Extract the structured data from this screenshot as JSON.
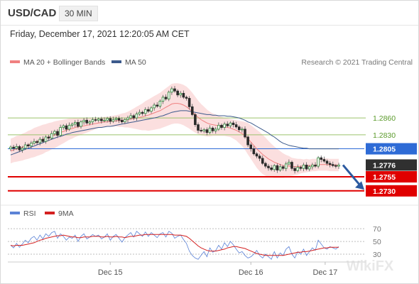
{
  "header": {
    "pair": "USD/CAD",
    "timeframe": "30 MIN",
    "date": "Friday, December 17, 2021 12:20:05 AM CET"
  },
  "chart_data": {
    "type": "candlestick",
    "title": "USD/CAD",
    "legend": {
      "ma20": {
        "label": "MA 20 + Bollinger Bands",
        "color": "#f08080"
      },
      "ma50": {
        "label": "MA 50",
        "color": "#3c5a8c"
      },
      "rsi": {
        "label": "RSI",
        "color": "#5b82d6"
      },
      "ma9": {
        "label": "9MA",
        "color": "#d42020"
      }
    },
    "source": "Research © 2021 Trading Central",
    "watermark": "WikiFX",
    "x_ticks": [
      "Dec 15",
      "Dec 16",
      "Dec 17"
    ],
    "ylim": [
      1.2712,
      1.2945
    ],
    "levels": [
      {
        "value": 1.286,
        "label": "1.2860",
        "kind": "resistance",
        "color": "#9cc46c"
      },
      {
        "value": 1.283,
        "label": "1.2830",
        "kind": "resistance",
        "color": "#9cc46c"
      },
      {
        "value": 1.2805,
        "label": "1.2805",
        "kind": "ma",
        "color": "#2e6bd6"
      },
      {
        "value": 1.2776,
        "label": "1.2776",
        "kind": "last",
        "color": "#303030"
      },
      {
        "value": 1.2755,
        "label": "1.2755",
        "kind": "support",
        "color": "#e00000"
      },
      {
        "value": 1.273,
        "label": "1.2730",
        "kind": "support",
        "color": "#e00000"
      }
    ],
    "close": [
      1.2808,
      1.2806,
      1.2809,
      1.2803,
      1.2806,
      1.2812,
      1.281,
      1.2815,
      1.2818,
      1.2816,
      1.2822,
      1.2818,
      1.2826,
      1.2824,
      1.2832,
      1.2836,
      1.2829,
      1.2843,
      1.2846,
      1.284,
      1.2847,
      1.2849,
      1.2852,
      1.2845,
      1.2853,
      1.2856,
      1.2851,
      1.2853,
      1.2857,
      1.2856,
      1.2858,
      1.2855,
      1.2856,
      1.2859,
      1.2854,
      1.2857,
      1.2859,
      1.2856,
      1.2853,
      1.2857,
      1.286,
      1.2864,
      1.286,
      1.2867,
      1.287,
      1.2868,
      1.2875,
      1.2872,
      1.2878,
      1.2883,
      1.2881,
      1.289,
      1.2897,
      1.2894,
      1.2906,
      1.2912,
      1.2908,
      1.2901,
      1.2904,
      1.2897,
      1.2895,
      1.288,
      1.2866,
      1.2848,
      1.2838,
      1.2837,
      1.2839,
      1.2834,
      1.2842,
      1.2837,
      1.284,
      1.2847,
      1.2843,
      1.2849,
      1.2846,
      1.2851,
      1.2848,
      1.2844,
      1.2839,
      1.284,
      1.2826,
      1.2812,
      1.2805,
      1.2796,
      1.2792,
      1.2788,
      1.2779,
      1.2774,
      1.2771,
      1.2768,
      1.2775,
      1.2767,
      1.2773,
      1.277,
      1.2778,
      1.2781,
      1.277,
      1.2766,
      1.2772,
      1.277,
      1.2776,
      1.2769,
      1.2773,
      1.2776,
      1.2774,
      1.2789,
      1.2786,
      1.2783,
      1.2779,
      1.2777,
      1.2775,
      1.2774,
      1.2776
    ],
    "ma20": [
      1.2801,
      1.2803,
      1.2805,
      1.2806,
      1.2808,
      1.281,
      1.2812,
      1.2814,
      1.2816,
      1.2818,
      1.282,
      1.2822,
      1.2824,
      1.2826,
      1.2828,
      1.283,
      1.2832,
      1.2834,
      1.2836,
      1.2838,
      1.284,
      1.2841,
      1.2843,
      1.2844,
      1.2845,
      1.2846,
      1.2847,
      1.2848,
      1.2849,
      1.285,
      1.2851,
      1.2852,
      1.2853,
      1.2853,
      1.2854,
      1.2854,
      1.2855,
      1.2855,
      1.2856,
      1.2856,
      1.2857,
      1.2858,
      1.2859,
      1.286,
      1.2861,
      1.2862,
      1.2864,
      1.2865,
      1.2867,
      1.2869,
      1.2871,
      1.2873,
      1.2876,
      1.2879,
      1.2882,
      1.2885,
      1.2886,
      1.2886,
      1.2885,
      1.2883,
      1.288,
      1.2876,
      1.2871,
      1.2866,
      1.2861,
      1.2857,
      1.2854,
      1.2851,
      1.2849,
      1.2848,
      1.2847,
      1.2846,
      1.2845,
      1.2844,
      1.2843,
      1.2842,
      1.284,
      1.2838,
      1.2835,
      1.2832,
      1.2828,
      1.2823,
      1.2817,
      1.2811,
      1.2805,
      1.28,
      1.2795,
      1.2791,
      1.2787,
      1.2784,
      1.2781,
      1.2779,
      1.2777,
      1.2775,
      1.2774,
      1.2774,
      1.2773,
      1.2773,
      1.2773,
      1.2774,
      1.2774,
      1.2775,
      1.2775,
      1.2776,
      1.2776,
      1.2777,
      1.2777,
      1.2777,
      1.2777,
      1.2776,
      1.2776,
      1.2776,
      1.2776
    ],
    "ma50": [
      1.2794,
      1.2796,
      1.2798,
      1.28,
      1.2802,
      1.2804,
      1.2806,
      1.2808,
      1.281,
      1.2812,
      1.2814,
      1.2816,
      1.2818,
      1.282,
      1.2822,
      1.2824,
      1.2826,
      1.2827,
      1.2829,
      1.2831,
      1.2832,
      1.2834,
      1.2835,
      1.2836,
      1.2837,
      1.2838,
      1.2839,
      1.284,
      1.2841,
      1.2842,
      1.2843,
      1.2843,
      1.2844,
      1.2845,
      1.2845,
      1.2846,
      1.2847,
      1.2848,
      1.2849,
      1.285,
      1.2851,
      1.2852,
      1.2853,
      1.2854,
      1.2855,
      1.2856,
      1.2857,
      1.2858,
      1.2859,
      1.286,
      1.2861,
      1.2863,
      1.2864,
      1.2866,
      1.2868,
      1.287,
      1.2871,
      1.2872,
      1.2873,
      1.2873,
      1.2873,
      1.2872,
      1.2871,
      1.287,
      1.2869,
      1.2868,
      1.2867,
      1.2866,
      1.2866,
      1.2865,
      1.2865,
      1.2864,
      1.2864,
      1.2864,
      1.2863,
      1.2863,
      1.2862,
      1.2861,
      1.286,
      1.2858,
      1.2856,
      1.2853,
      1.2851,
      1.2848,
      1.2845,
      1.2842,
      1.2839,
      1.2836,
      1.2833,
      1.2829,
      1.2826,
      1.2822,
      1.2818,
      1.2815,
      1.2813,
      1.2811,
      1.281,
      1.2809,
      1.2808,
      1.2807,
      1.2806,
      1.2806,
      1.2805,
      1.2805,
      1.2805,
      1.2805,
      1.2805,
      1.2805,
      1.2805,
      1.2805,
      1.2805,
      1.2805,
      1.2805
    ],
    "bb_width": [
      0.0022,
      0.0022,
      0.0023,
      0.0023,
      0.0024,
      0.0024,
      0.0025,
      0.0025,
      0.0026,
      0.0026,
      0.0026,
      0.0026,
      0.0025,
      0.0025,
      0.0024,
      0.0024,
      0.0023,
      0.0022,
      0.0021,
      0.002,
      0.0019,
      0.0018,
      0.0017,
      0.0016,
      0.0015,
      0.0014,
      0.0013,
      0.0012,
      0.0011,
      0.001,
      0.0009,
      0.0009,
      0.0009,
      0.0009,
      0.0009,
      0.001,
      0.001,
      0.0011,
      0.0012,
      0.0013,
      0.0014,
      0.0016,
      0.0018,
      0.002,
      0.0022,
      0.0024,
      0.0026,
      0.0028,
      0.0029,
      0.003,
      0.0031,
      0.0032,
      0.0033,
      0.0034,
      0.0035,
      0.0036,
      0.0036,
      0.0036,
      0.0036,
      0.0036,
      0.0036,
      0.0035,
      0.0034,
      0.0032,
      0.003,
      0.0028,
      0.0026,
      0.0024,
      0.0022,
      0.002,
      0.0019,
      0.0018,
      0.0017,
      0.0016,
      0.0016,
      0.0016,
      0.0017,
      0.0018,
      0.002,
      0.0022,
      0.0025,
      0.0028,
      0.003,
      0.0032,
      0.0034,
      0.0035,
      0.0035,
      0.0034,
      0.0032,
      0.003,
      0.0028,
      0.0026,
      0.0024,
      0.0022,
      0.002,
      0.0018,
      0.0016,
      0.0015,
      0.0014,
      0.0013,
      0.0012,
      0.0012,
      0.0011,
      0.0011,
      0.0011,
      0.0011,
      0.0011,
      0.0011,
      0.0011,
      0.0011,
      0.0011,
      0.0011,
      0.0011
    ],
    "rsi_ticks": [
      70,
      50,
      30
    ],
    "rsi": [
      44,
      40,
      47,
      41,
      46,
      52,
      48,
      55,
      58,
      52,
      60,
      54,
      62,
      58,
      64,
      66,
      55,
      62,
      58,
      52,
      57,
      55,
      60,
      50,
      58,
      62,
      54,
      57,
      61,
      58,
      60,
      54,
      57,
      62,
      52,
      58,
      61,
      55,
      49,
      56,
      60,
      64,
      57,
      66,
      62,
      58,
      65,
      58,
      64,
      60,
      56,
      62,
      64,
      57,
      66,
      63,
      55,
      58,
      60,
      53,
      47,
      35,
      28,
      24,
      22,
      28,
      34,
      26,
      40,
      33,
      36,
      44,
      38,
      48,
      42,
      50,
      45,
      38,
      32,
      34,
      28,
      24,
      26,
      30,
      36,
      28,
      24,
      30,
      26,
      22,
      34,
      24,
      32,
      28,
      38,
      42,
      30,
      24,
      34,
      30,
      38,
      28,
      34,
      40,
      36,
      52,
      46,
      40,
      38,
      42,
      40,
      38,
      42
    ],
    "rsi_ma9": [
      44,
      43,
      44,
      44,
      44,
      45,
      46,
      47,
      48,
      50,
      52,
      53,
      55,
      56,
      57,
      58,
      59,
      59,
      60,
      59,
      58,
      57,
      57,
      56,
      56,
      57,
      57,
      57,
      58,
      58,
      58,
      57,
      57,
      58,
      57,
      57,
      58,
      57,
      57,
      56,
      57,
      58,
      58,
      59,
      60,
      60,
      61,
      61,
      61,
      61,
      61,
      61,
      61,
      61,
      61,
      61,
      60,
      60,
      60,
      59,
      58,
      55,
      51,
      47,
      43,
      40,
      38,
      36,
      35,
      35,
      35,
      36,
      37,
      38,
      40,
      41,
      42,
      42,
      41,
      40,
      39,
      37,
      35,
      33,
      31,
      30,
      29,
      28,
      28,
      28,
      28,
      28,
      28,
      28,
      29,
      30,
      31,
      32,
      33,
      33,
      34,
      34,
      35,
      36,
      37,
      38,
      39,
      40,
      40,
      41,
      41,
      41,
      41
    ]
  }
}
